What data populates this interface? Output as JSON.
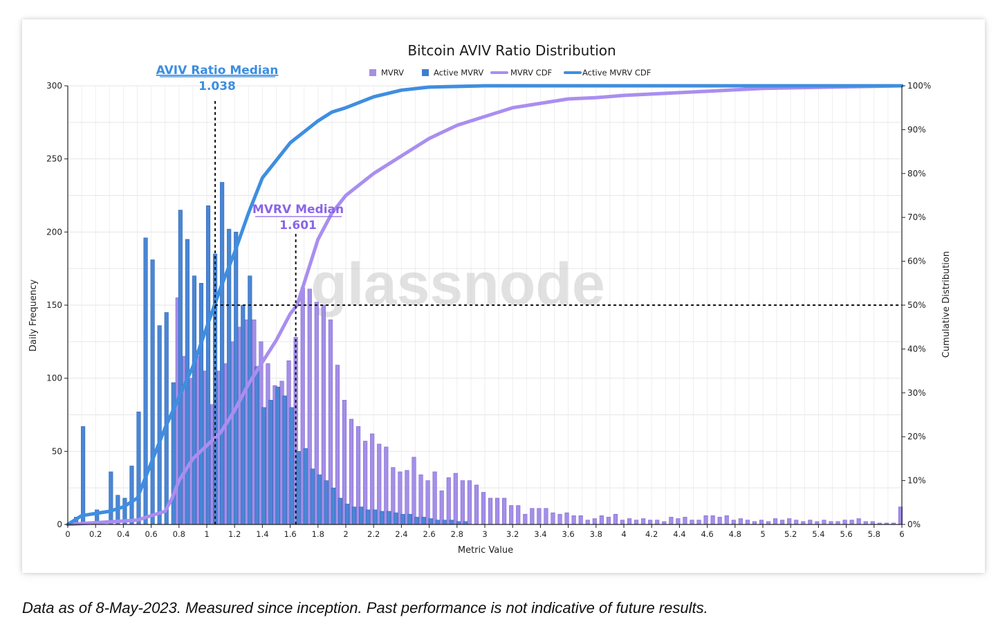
{
  "chart_data": {
    "type": "bar",
    "title": "Bitcoin AVIV Ratio Distribution",
    "xlabel": "Metric Value",
    "ylabel": "Daily Frequency",
    "y2label": "Cumulative Distribution",
    "xlim": [
      0,
      6
    ],
    "ylim": [
      0,
      300
    ],
    "y2lim": [
      0,
      100
    ],
    "x_ticks": [
      "0",
      "0.2",
      "0.4",
      "0.6",
      "0.8",
      "1",
      "1.2",
      "1.4",
      "1.6",
      "1.8",
      "2",
      "2.2",
      "2.4",
      "2.6",
      "2.8",
      "3",
      "3.2",
      "3.4",
      "3.6",
      "3.8",
      "4",
      "4.2",
      "4.4",
      "4.6",
      "4.8",
      "5",
      "5.2",
      "5.4",
      "5.6",
      "5.8",
      "6"
    ],
    "y_ticks": [
      "0",
      "50",
      "100",
      "150",
      "200",
      "250",
      "300"
    ],
    "y2_ticks": [
      "0%",
      "10%",
      "20%",
      "30%",
      "40%",
      "50%",
      "60%",
      "70%",
      "80%",
      "90%",
      "100%"
    ],
    "grid": true,
    "legend_position": "top-center",
    "watermark": "glassnode",
    "colors": {
      "mvrv_bar": "#a48fe6",
      "mvrv_bar_edge": "#7b62d6",
      "active_bar": "#4a86d4",
      "active_bar_edge": "#2f66b8",
      "mvrv_cdf": "#a98ef0",
      "active_cdf": "#3f8ee0",
      "aviv_median_text": "#3b8ee0",
      "mvrv_median_text": "#8a65e8"
    },
    "annotations": [
      {
        "label": "AVIV Ratio Median",
        "value": "1.038",
        "x": 1.06
      },
      {
        "label": "MVRV Median",
        "value": "1.601",
        "x": 1.64
      }
    ],
    "median_line_y_percent": 50,
    "series": [
      {
        "name": "MVRV",
        "kind": "bar",
        "x": [
          0.79,
          0.84,
          0.89,
          0.94,
          0.99,
          1.04,
          1.09,
          1.14,
          1.19,
          1.24,
          1.29,
          1.34,
          1.39,
          1.44,
          1.49,
          1.54,
          1.59,
          1.64,
          1.69,
          1.74,
          1.79,
          1.84,
          1.89,
          1.94,
          1.99,
          2.04,
          2.09,
          2.14,
          2.19,
          2.24,
          2.29,
          2.34,
          2.39,
          2.44,
          2.49,
          2.54,
          2.59,
          2.64,
          2.69,
          2.74,
          2.79,
          2.84,
          2.89,
          2.94,
          2.99,
          3.04,
          3.09,
          3.14,
          3.19,
          3.24,
          3.29,
          3.34,
          3.39,
          3.44,
          3.49,
          3.54,
          3.59,
          3.64,
          3.69,
          3.74,
          3.79,
          3.84,
          3.89,
          3.94,
          3.99,
          4.04,
          4.09,
          4.14,
          4.19,
          4.24,
          4.29,
          4.34,
          4.39,
          4.44,
          4.49,
          4.54,
          4.59,
          4.64,
          4.69,
          4.74,
          4.79,
          4.84,
          4.89,
          4.94,
          4.99,
          5.04,
          5.09,
          5.14,
          5.19,
          5.24,
          5.29,
          5.34,
          5.39,
          5.44,
          5.49,
          5.54,
          5.59,
          5.64,
          5.69,
          5.74,
          5.79,
          5.84,
          5.89,
          5.94,
          5.99
        ],
        "values": [
          155,
          115,
          100,
          115,
          105,
          82,
          105,
          110,
          125,
          135,
          140,
          140,
          125,
          110,
          95,
          98,
          112,
          128,
          162,
          161,
          152,
          150,
          140,
          109,
          85,
          72,
          67,
          57,
          62,
          55,
          53,
          39,
          36,
          37,
          46,
          34,
          30,
          36,
          23,
          32,
          35,
          30,
          30,
          27,
          22,
          18,
          18,
          18,
          13,
          13,
          7,
          11,
          11,
          11,
          8,
          7,
          8,
          6,
          6,
          3,
          4,
          6,
          5,
          7,
          3,
          4,
          3,
          4,
          3,
          3,
          2,
          5,
          4,
          5,
          3,
          3,
          6,
          6,
          5,
          6,
          3,
          4,
          3,
          2,
          3,
          2,
          4,
          3,
          4,
          3,
          2,
          3,
          2,
          3,
          2,
          2,
          3,
          3,
          4,
          2,
          2,
          1,
          1,
          1,
          12
        ]
      },
      {
        "name": "Active MVRV",
        "kind": "bar",
        "x": [
          0.06,
          0.11,
          0.21,
          0.31,
          0.36,
          0.41,
          0.46,
          0.51,
          0.56,
          0.61,
          0.66,
          0.71,
          0.76,
          0.81,
          0.86,
          0.91,
          0.96,
          1.01,
          1.06,
          1.11,
          1.16,
          1.21,
          1.26,
          1.31,
          1.36,
          1.41,
          1.46,
          1.51,
          1.56,
          1.61,
          1.66,
          1.71,
          1.76,
          1.81,
          1.86,
          1.91,
          1.96,
          2.01,
          2.06,
          2.11,
          2.16,
          2.21,
          2.26,
          2.31,
          2.36,
          2.41,
          2.46,
          2.51,
          2.56,
          2.61,
          2.66,
          2.71,
          2.76,
          2.81,
          2.86
        ],
        "values": [
          5,
          67,
          10,
          36,
          20,
          18,
          40,
          77,
          196,
          181,
          136,
          145,
          97,
          215,
          195,
          170,
          165,
          218,
          185,
          234,
          202,
          200,
          150,
          170,
          108,
          80,
          85,
          94,
          88,
          80,
          50,
          52,
          38,
          34,
          30,
          25,
          18,
          14,
          12,
          12,
          10,
          10,
          9,
          9,
          8,
          7,
          7,
          5,
          5,
          4,
          3,
          3,
          3,
          2,
          2
        ]
      },
      {
        "name": "MVRV CDF",
        "kind": "line",
        "unit": "percent",
        "x": [
          0.0,
          0.5,
          0.6,
          0.7,
          0.75,
          0.8,
          0.9,
          1.0,
          1.1,
          1.2,
          1.3,
          1.4,
          1.5,
          1.6,
          1.65,
          1.7,
          1.8,
          1.9,
          2.0,
          2.2,
          2.4,
          2.6,
          2.8,
          3.0,
          3.2,
          3.4,
          3.6,
          3.8,
          4.0,
          4.5,
          5.0,
          5.5,
          6.0
        ],
        "values": [
          0,
          1,
          2,
          3,
          6,
          10,
          15,
          18,
          21,
          26,
          32,
          37,
          42,
          48,
          50,
          55,
          65,
          71,
          75,
          80,
          84,
          88,
          91,
          93,
          95,
          96,
          97,
          97.3,
          97.8,
          98.6,
          99.4,
          99.7,
          100
        ]
      },
      {
        "name": "Active MVRV CDF",
        "kind": "line",
        "unit": "percent",
        "x": [
          0.0,
          0.1,
          0.2,
          0.3,
          0.4,
          0.5,
          0.6,
          0.7,
          0.8,
          0.9,
          1.0,
          1.1,
          1.2,
          1.3,
          1.4,
          1.6,
          1.8,
          1.9,
          2.0,
          2.2,
          2.4,
          2.6,
          3.0,
          4.0,
          5.0,
          6.0
        ],
        "values": [
          0,
          2,
          2.5,
          3,
          4,
          6,
          14,
          22,
          29,
          36,
          45,
          54,
          62,
          71,
          79,
          87,
          92,
          94,
          95,
          97.5,
          99,
          99.7,
          100,
          100,
          100,
          100
        ]
      }
    ]
  },
  "caption": "Data as of 8-May-2023. Measured since inception. Past performance is not indicative of future results."
}
